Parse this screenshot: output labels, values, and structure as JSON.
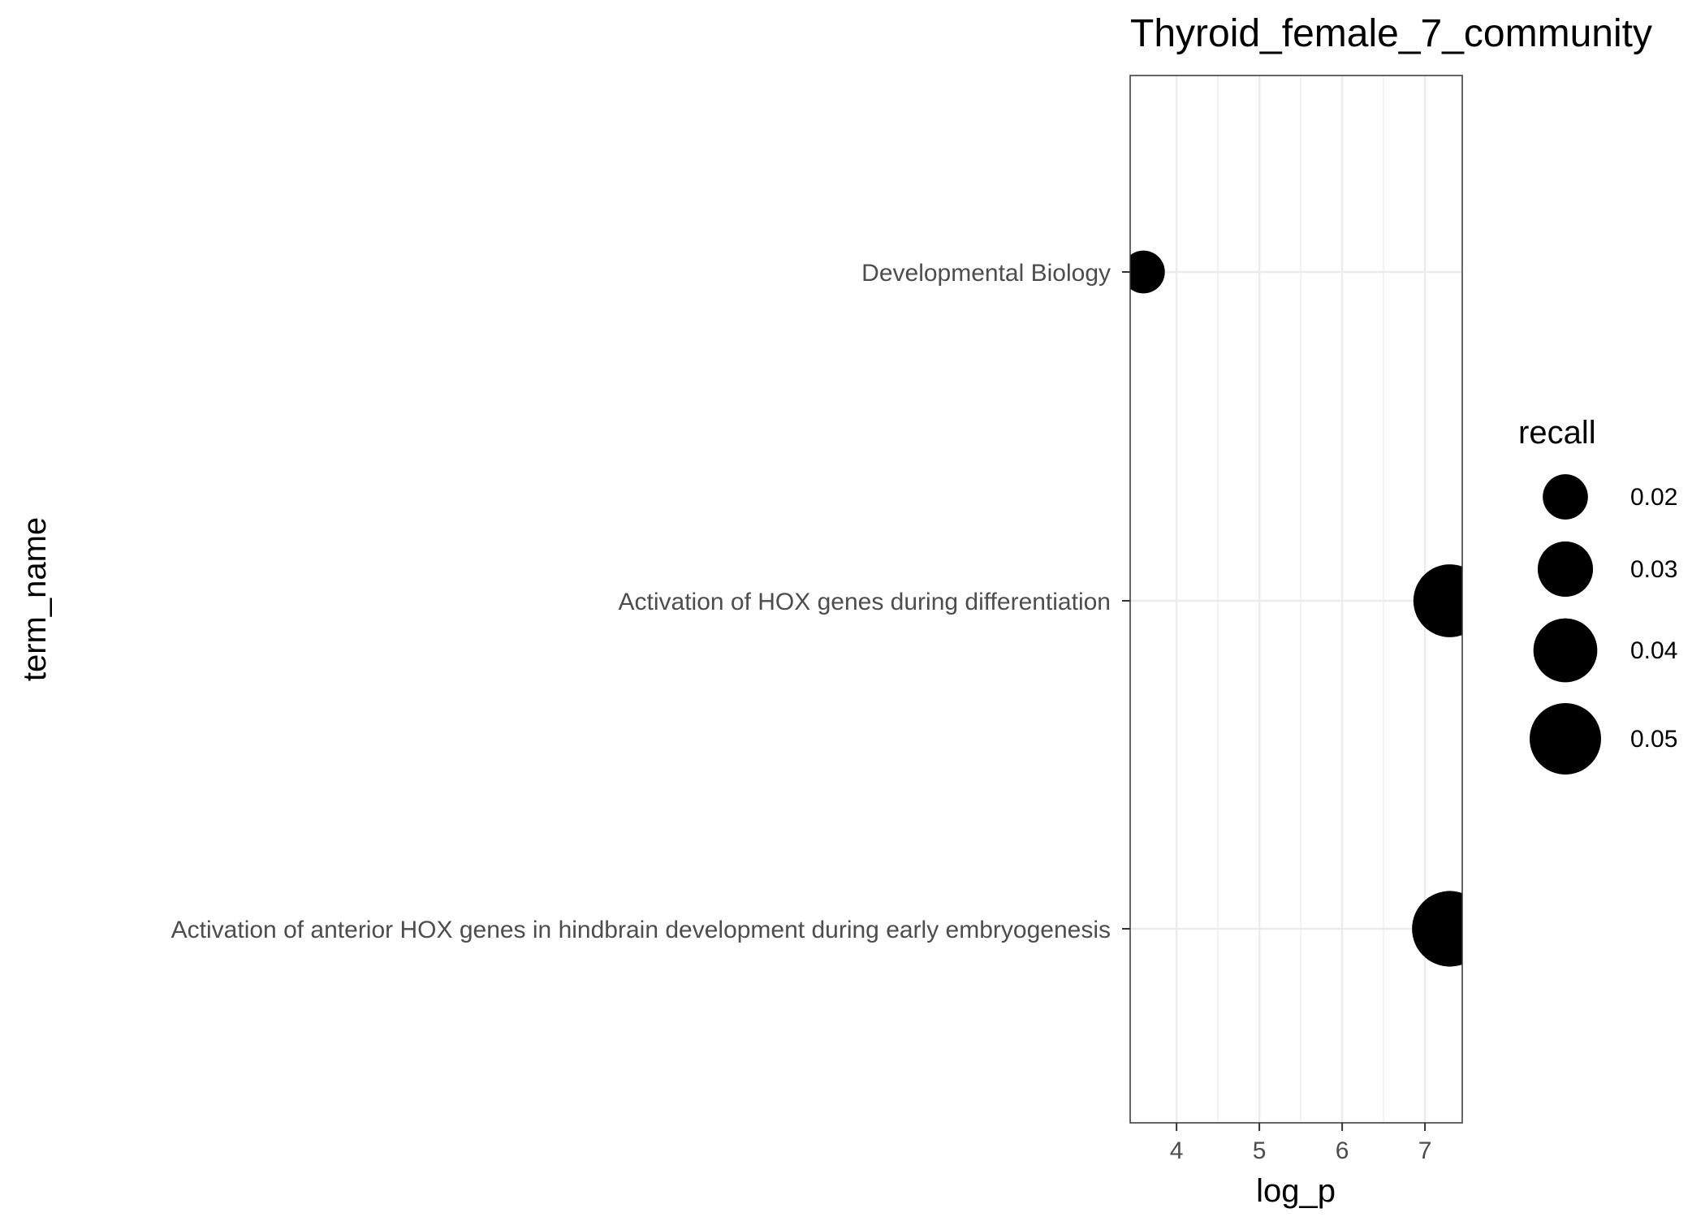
{
  "chart_data": {
    "type": "scatter",
    "title": "Thyroid_female_7_community",
    "xlabel": "log_p",
    "ylabel": "term_name",
    "xlim": [
      3.44,
      7.45
    ],
    "x_ticks": [
      "4",
      "5",
      "6",
      "7"
    ],
    "grid": true,
    "categories": [
      "Developmental Biology",
      "Activation of HOX genes during differentiation",
      "Activation of anterior HOX genes in hindbrain development during early embryogenesis"
    ],
    "points": [
      {
        "term": "Developmental Biology",
        "x": 3.6,
        "size": 0.018
      },
      {
        "term": "Activation of HOX genes during differentiation",
        "x": 7.3,
        "size": 0.052
      },
      {
        "term": "Activation of anterior HOX genes in hindbrain development during early embryogenesis",
        "x": 7.3,
        "size": 0.056
      }
    ],
    "legend": {
      "title": "recall",
      "position": "right",
      "entries": [
        {
          "label": "0.02",
          "value": 0.02
        },
        {
          "label": "0.03",
          "value": 0.03
        },
        {
          "label": "0.04",
          "value": 0.04
        },
        {
          "label": "0.05",
          "value": 0.05
        }
      ]
    }
  }
}
